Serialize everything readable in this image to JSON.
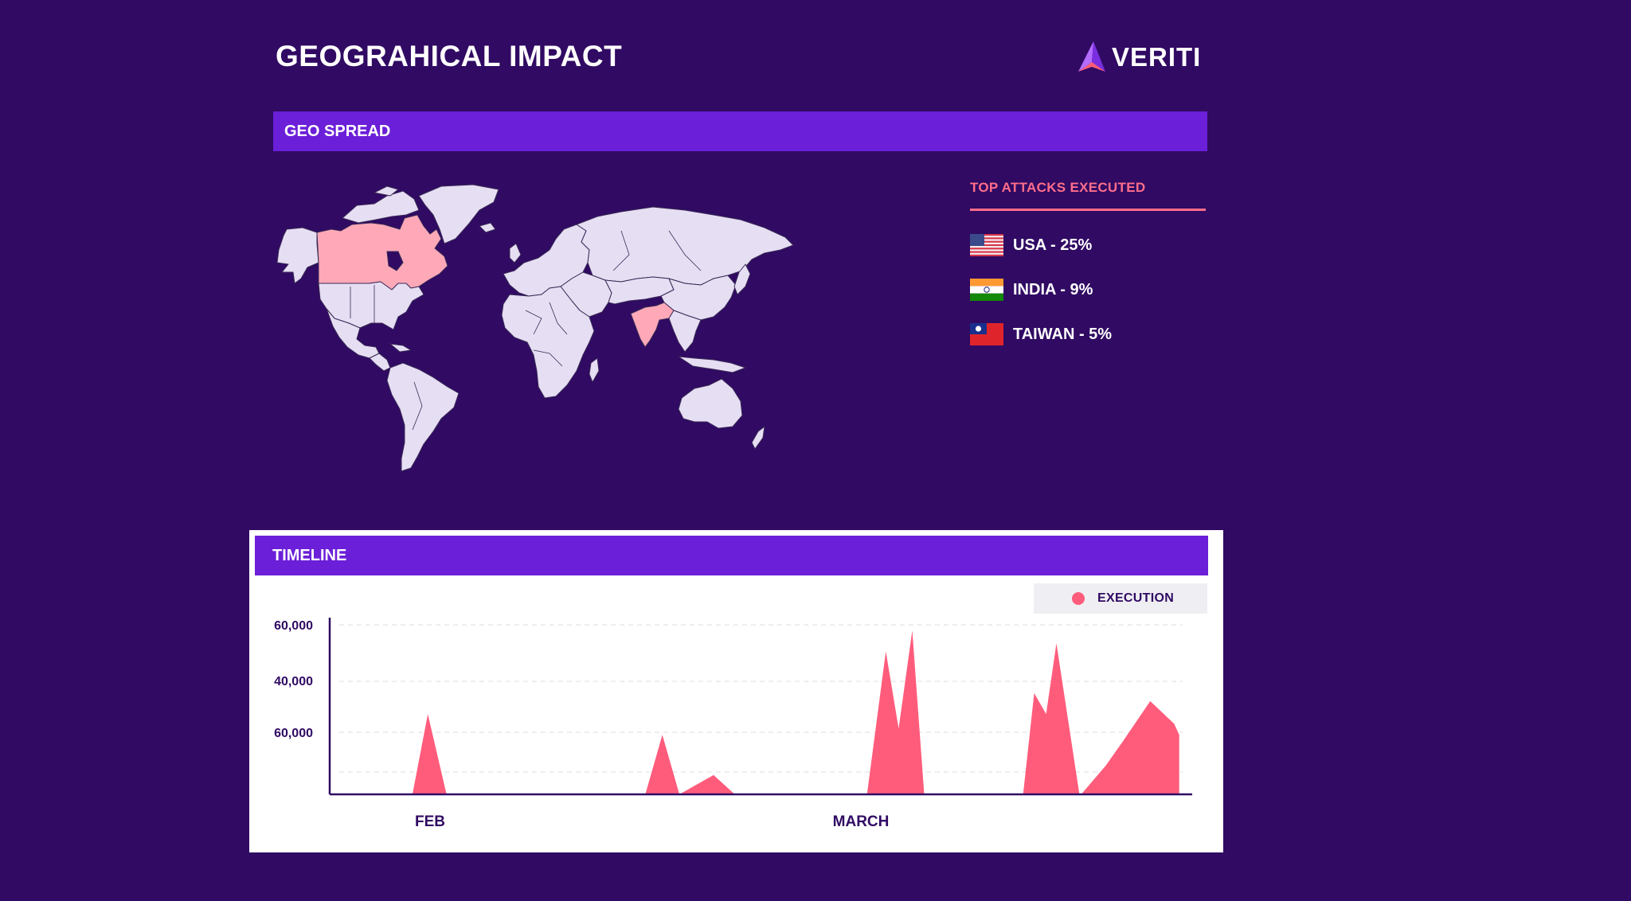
{
  "header": {
    "title": "GEOGRAHICAL IMPACT",
    "logo_text": "VERITI"
  },
  "geo": {
    "section_label": "GEO SPREAD",
    "top_attacks_title": "TOP ATTACKS EXECUTED",
    "items": [
      {
        "label": "USA - 25%",
        "flag": "usa-flag"
      },
      {
        "label": "INDIA - 9%",
        "flag": "india-flag"
      },
      {
        "label": "TAIWAN - 5%",
        "flag": "taiwan-flag"
      }
    ],
    "highlighted_regions": [
      "Canada",
      "India"
    ],
    "colors": {
      "land": "#e6def3",
      "highlight": "#ffa9b8",
      "border": "#3a2b57"
    }
  },
  "timeline": {
    "section_label": "TIMELINE",
    "legend_label": "EXECUTION"
  },
  "colors": {
    "background": "#300a63",
    "accent": "#6b1fd8",
    "pink": "#ff6e8a",
    "series": "#ff5c7c"
  },
  "chart_data": {
    "type": "area",
    "ytick_labels": [
      "60,000",
      "40,000",
      "60,000"
    ],
    "xtick_labels": [
      "FEB",
      "MARCH"
    ],
    "series": [
      {
        "name": "EXECUTION",
        "points": [
          [
            0,
            0
          ],
          [
            0.097,
            0
          ],
          [
            0.115,
            50
          ],
          [
            0.137,
            0
          ],
          [
            0.37,
            0
          ],
          [
            0.39,
            37
          ],
          [
            0.41,
            0
          ],
          [
            0.45,
            12
          ],
          [
            0.475,
            0
          ],
          [
            0.63,
            0
          ],
          [
            0.652,
            89
          ],
          [
            0.667,
            41
          ],
          [
            0.683,
            102
          ],
          [
            0.697,
            0
          ],
          [
            0.813,
            0
          ],
          [
            0.826,
            63
          ],
          [
            0.84,
            50
          ],
          [
            0.852,
            94
          ],
          [
            0.879,
            0
          ],
          [
            0.881,
            0
          ],
          [
            0.91,
            18
          ],
          [
            0.93,
            33
          ],
          [
            0.962,
            58
          ],
          [
            0.99,
            44
          ],
          [
            0.996,
            37
          ],
          [
            0.996,
            0
          ]
        ]
      }
    ]
  }
}
